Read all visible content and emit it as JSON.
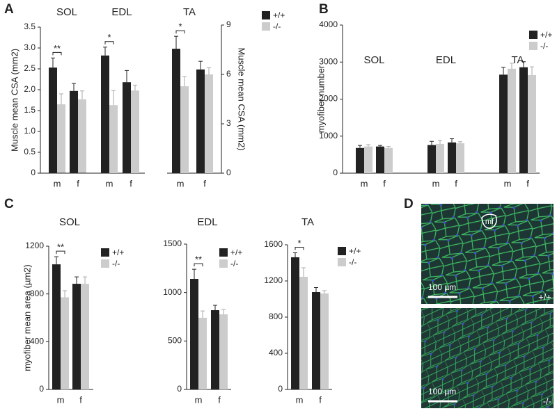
{
  "panel_labels": [
    "A",
    "B",
    "C",
    "D"
  ],
  "chart_data": [
    {
      "type": "bar",
      "title": "SOL",
      "ylabel": "Muscle mean CSA (mm2)",
      "categories": [
        "m",
        "f"
      ],
      "ylim": [
        0,
        3.5
      ],
      "yticks": [
        0,
        0.5,
        {
          "value": 1,
          "label": "1.0"
        },
        1.5,
        {
          "value": 2,
          "label": "2.0"
        },
        2.5,
        {
          "value": 3,
          "label": "3.0"
        },
        3.5
      ],
      "series": [
        {
          "name": "+/+",
          "color": "#222222",
          "values": [
            2.53,
            1.97
          ],
          "errors": [
            0.23,
            0.18
          ]
        },
        {
          "name": "-/-",
          "color": "#cccccc",
          "values": [
            1.65,
            1.77
          ],
          "errors": [
            0.25,
            0.2
          ]
        }
      ],
      "annotations": [
        {
          "text": "**",
          "category": 0
        }
      ],
      "legend": true
    },
    {
      "type": "bar",
      "title": "EDL",
      "categories": [
        "m",
        "f"
      ],
      "ylim": [
        0,
        3.5
      ],
      "series": [
        {
          "name": "+/+",
          "color": "#222222",
          "values": [
            2.82,
            2.18
          ],
          "errors": [
            0.2,
            0.28
          ]
        },
        {
          "name": "-/-",
          "color": "#cccccc",
          "values": [
            1.63,
            1.98
          ],
          "errors": [
            0.35,
            0.13
          ]
        }
      ],
      "annotations": [
        {
          "text": "*",
          "category": 0
        }
      ]
    },
    {
      "type": "bar",
      "title": "TA",
      "y2label": "Muscle mean CSA (mm2)",
      "categories": [
        "m",
        "f"
      ],
      "y2lim": [
        0,
        9
      ],
      "y2ticks": [
        0,
        3,
        6,
        9
      ],
      "series": [
        {
          "name": "+/+",
          "color": "#222222",
          "axis": "y2",
          "values": [
            7.56,
            6.3
          ],
          "errors": [
            0.76,
            0.5
          ]
        },
        {
          "name": "-/-",
          "color": "#cccccc",
          "axis": "y2",
          "values": [
            5.28,
            6.0
          ],
          "errors": [
            0.59,
            0.4
          ]
        }
      ],
      "annotations": [
        {
          "text": "*",
          "category": 0
        }
      ]
    },
    {
      "type": "bar",
      "ylabel": "myofiber number",
      "groups": [
        "SOL",
        "EDL",
        "TA"
      ],
      "categories": [
        "m",
        "f",
        "m",
        "f",
        "m",
        "f"
      ],
      "ylim": [
        0,
        4000
      ],
      "yticks": [
        0,
        1000,
        2000,
        3000,
        4000
      ],
      "series": [
        {
          "name": "+/+",
          "color": "#222222",
          "values": [
            680,
            720,
            760,
            830,
            2660,
            2860
          ],
          "errors": [
            70,
            30,
            100,
            100,
            200,
            150
          ]
        },
        {
          "name": "-/-",
          "color": "#cccccc",
          "values": [
            720,
            680,
            790,
            810,
            2820,
            2650
          ],
          "errors": [
            50,
            40,
            100,
            40,
            150,
            220
          ]
        }
      ],
      "legend": true
    },
    {
      "type": "bar",
      "title": "SOL",
      "ylabel": "myofiber mean area (µm2)",
      "categories": [
        "m",
        "f"
      ],
      "ylim": [
        0,
        1200
      ],
      "yticks": [
        0,
        400,
        800,
        1200
      ],
      "series": [
        {
          "name": "+/+",
          "color": "#222222",
          "values": [
            1048,
            885
          ],
          "errors": [
            64,
            58
          ]
        },
        {
          "name": "-/-",
          "color": "#cccccc",
          "values": [
            772,
            885
          ],
          "errors": [
            55,
            58
          ]
        }
      ],
      "annotations": [
        {
          "text": "**",
          "category": 0
        }
      ],
      "legend": true
    },
    {
      "type": "bar",
      "title": "EDL",
      "categories": [
        "m",
        "f"
      ],
      "ylim": [
        0,
        1500
      ],
      "yticks": [
        0,
        500,
        1000,
        1500
      ],
      "series": [
        {
          "name": "+/+",
          "color": "#222222",
          "values": [
            1141,
            818
          ],
          "errors": [
            100,
            50
          ]
        },
        {
          "name": "-/-",
          "color": "#cccccc",
          "values": [
            740,
            775
          ],
          "errors": [
            70,
            50
          ]
        }
      ],
      "annotations": [
        {
          "text": "**",
          "category": 0
        }
      ],
      "legend": true
    },
    {
      "type": "bar",
      "title": "TA",
      "categories": [
        "m",
        "f"
      ],
      "ylim": [
        0,
        1600
      ],
      "yticks": [
        0,
        400,
        800,
        1200,
        1600
      ],
      "series": [
        {
          "name": "+/+",
          "color": "#222222",
          "values": [
            1462,
            1077
          ],
          "errors": [
            50,
            50
          ]
        },
        {
          "name": "-/-",
          "color": "#cccccc",
          "values": [
            1246,
            1062
          ],
          "errors": [
            100,
            30
          ]
        }
      ],
      "annotations": [
        {
          "text": "*",
          "category": 0
        }
      ],
      "legend": true
    }
  ],
  "micrographs": [
    {
      "annotation": "mf",
      "scale_bar": "100 µm",
      "genotype": "+/+"
    },
    {
      "scale_bar": "100 µm",
      "genotype": "-/-"
    }
  ]
}
